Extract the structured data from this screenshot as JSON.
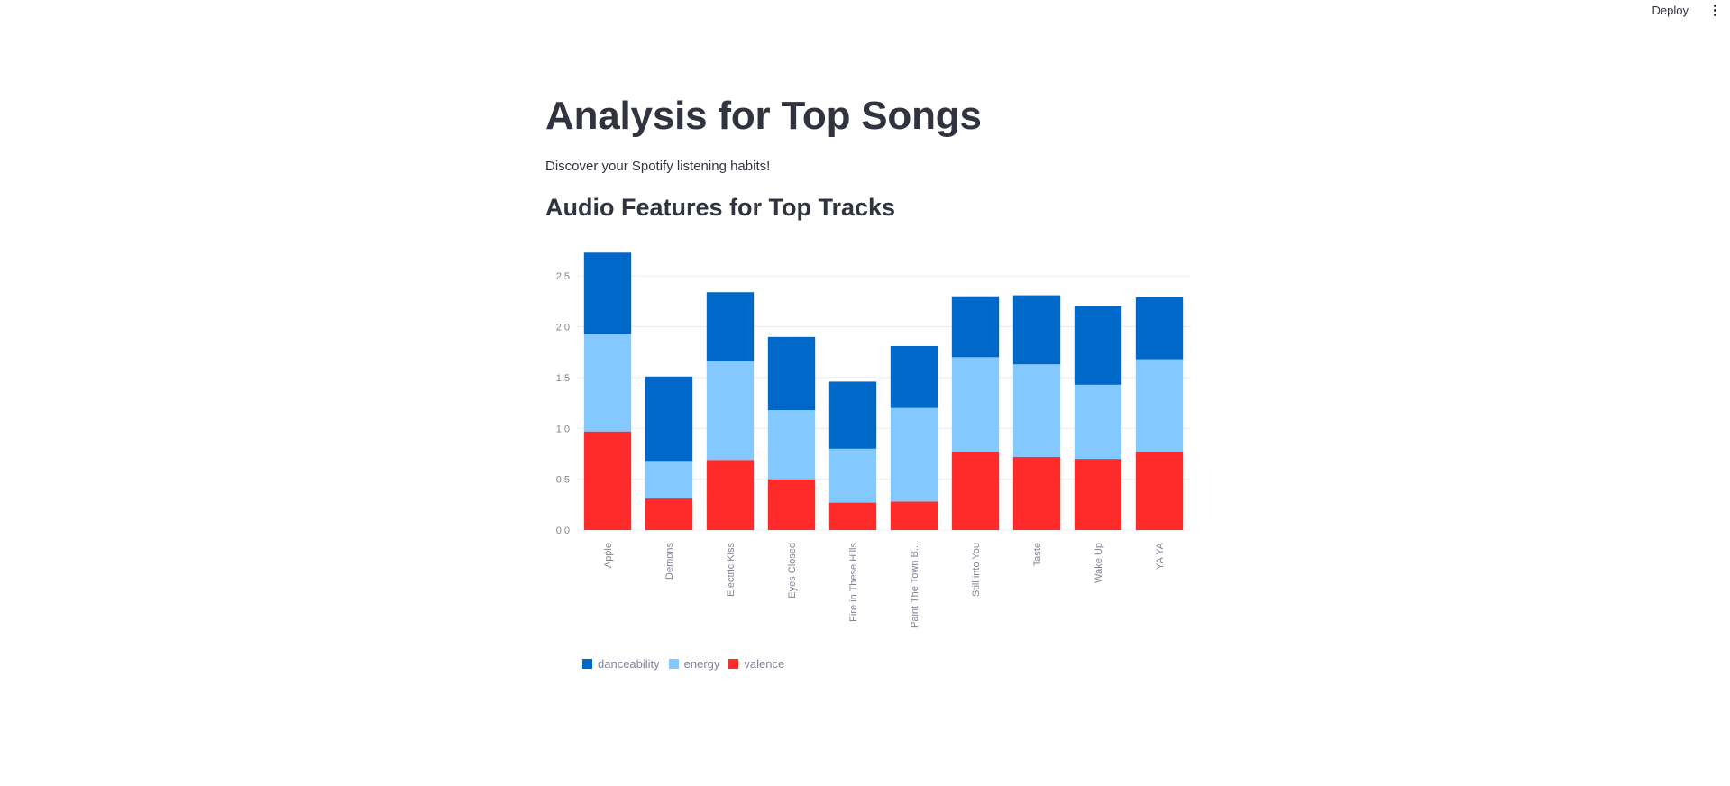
{
  "toolbar": {
    "deploy_label": "Deploy",
    "menu_icon": "vertical-ellipsis-icon"
  },
  "main": {
    "title": "Analysis for Top Songs",
    "subtitle": "Discover your Spotify listening habits!",
    "section_title": "Audio Features for Top Tracks"
  },
  "chart_data": {
    "type": "bar",
    "stacked": true,
    "categories": [
      "Apple",
      "Demons",
      "Electric Kiss",
      "Eyes Closed",
      "Fire in These Hills",
      "Paint The Town B...",
      "Still into You",
      "Taste",
      "Wake Up",
      "YA YA"
    ],
    "series": [
      {
        "name": "valence",
        "color": "#ff2b2b",
        "values": [
          0.97,
          0.31,
          0.69,
          0.5,
          0.27,
          0.28,
          0.77,
          0.72,
          0.7,
          0.77
        ]
      },
      {
        "name": "energy",
        "color": "#83c9ff",
        "values": [
          0.96,
          0.37,
          0.97,
          0.68,
          0.53,
          0.92,
          0.93,
          0.91,
          0.73,
          0.91
        ]
      },
      {
        "name": "danceability",
        "color": "#0068c9",
        "values": [
          0.8,
          0.83,
          0.68,
          0.72,
          0.66,
          0.61,
          0.6,
          0.68,
          0.77,
          0.61
        ]
      }
    ],
    "legend_order": [
      "danceability",
      "energy",
      "valence"
    ],
    "yticks": [
      "0.0",
      "0.5",
      "1.0",
      "1.5",
      "2.0",
      "2.5"
    ],
    "ylim": [
      0,
      2.75
    ],
    "grid": true,
    "legend_position": "bottom-left",
    "xlabel": "",
    "ylabel": ""
  }
}
